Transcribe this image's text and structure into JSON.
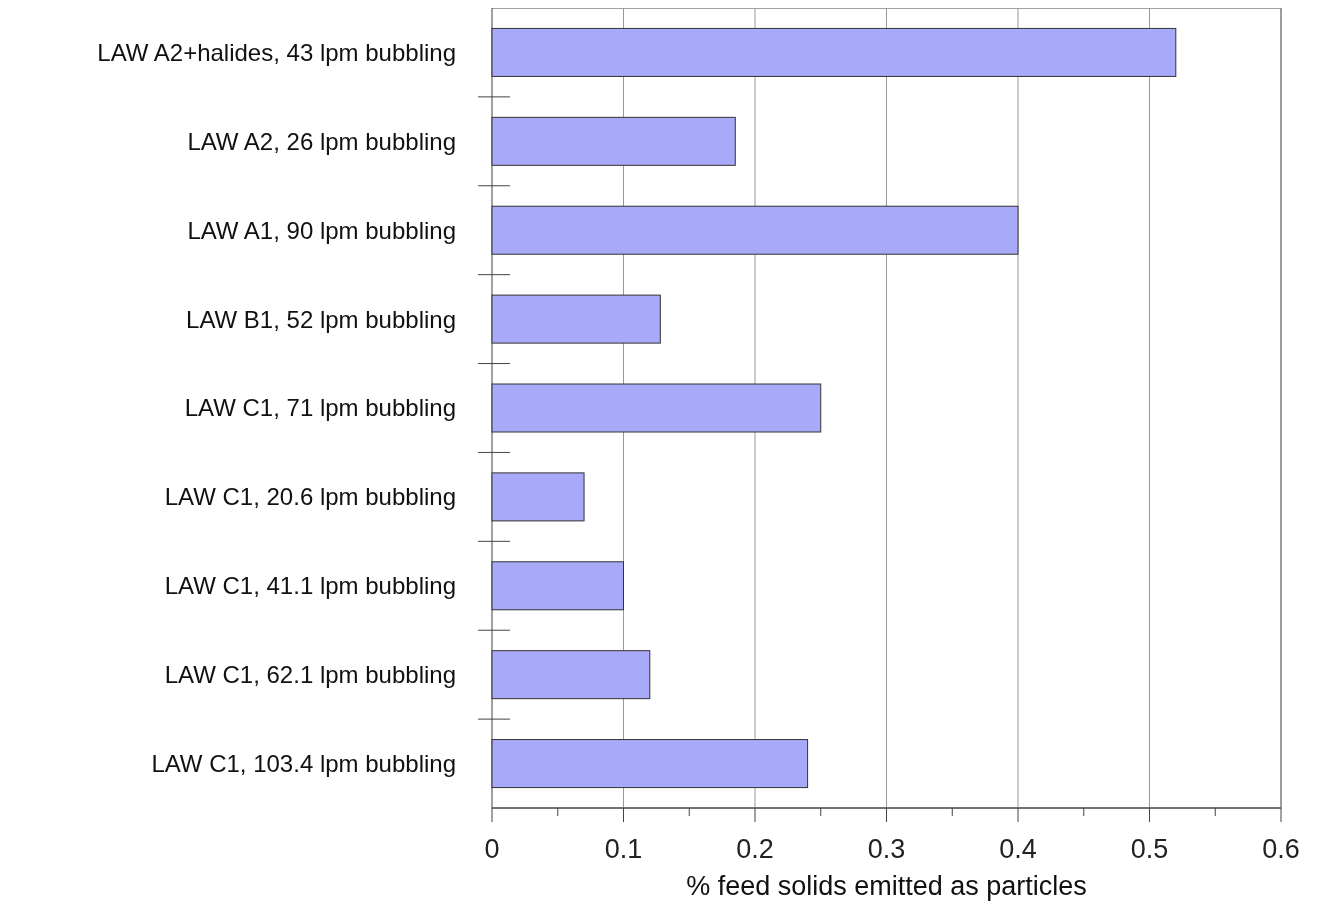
{
  "chart_data": {
    "type": "bar",
    "orientation": "horizontal",
    "xlabel": "% feed solids emitted as particles",
    "categories": [
      "LAW A2+halides, 43 lpm bubbling",
      "LAW A2, 26 lpm bubbling",
      "LAW A1, 90 lpm bubbling",
      "LAW B1, 52 lpm bubbling",
      "LAW C1, 71 lpm bubbling",
      "LAW C1, 20.6 lpm bubbling",
      "LAW C1, 41.1 lpm bubbling",
      "LAW C1, 62.1 lpm bubbling",
      "LAW C1, 103.4 lpm bubbling"
    ],
    "values": [
      0.52,
      0.185,
      0.4,
      0.128,
      0.25,
      0.07,
      0.1,
      0.12,
      0.24
    ],
    "color": "#a9a9f9",
    "xlim": [
      0,
      0.6
    ],
    "xticks": [
      0,
      {
        "value": 0.05,
        "label": null
      },
      0.1,
      {
        "value": 0.15,
        "label": null
      },
      0.2,
      {
        "value": 0.25,
        "label": null
      },
      0.3,
      {
        "value": 0.35,
        "label": null
      },
      0.4,
      {
        "value": 0.45,
        "label": null
      },
      0.5,
      {
        "value": 0.55,
        "label": null
      },
      0.6
    ],
    "grid": "x"
  }
}
